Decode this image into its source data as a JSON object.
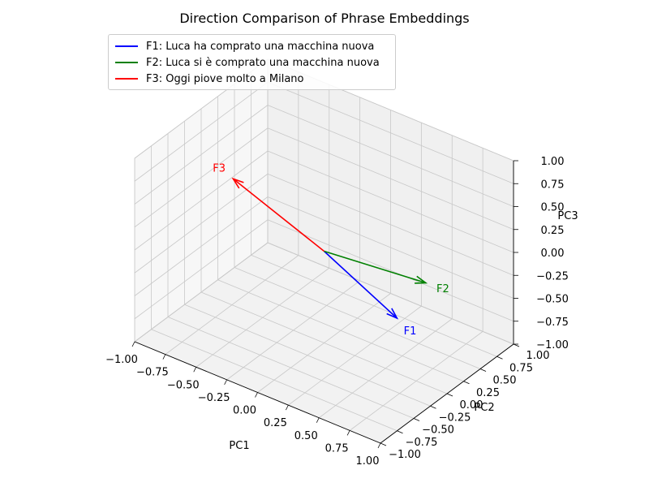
{
  "chart_data": {
    "type": "3d-quiver",
    "title": "Direction Comparison of Phrase Embeddings",
    "xlabel": "PC1",
    "ylabel": "PC2",
    "zlabel": "PC3",
    "xlim": [
      -1,
      1
    ],
    "ylim": [
      -1,
      1
    ],
    "zlim": [
      -1,
      1
    ],
    "x_ticks": [
      "−1.00",
      "−0.75",
      "−0.50",
      "−0.25",
      "0.00",
      "0.25",
      "0.50",
      "0.75",
      "1.00"
    ],
    "y_ticks": [
      "−1.00",
      "−0.75",
      "−0.50",
      "−0.25",
      "0.00",
      "0.25",
      "0.50",
      "0.75",
      "1.00"
    ],
    "z_ticks": [
      "−1.00",
      "−0.75",
      "−0.50",
      "−0.25",
      "0.00",
      "0.25",
      "0.50",
      "0.75",
      "1.00"
    ],
    "grid": true,
    "legend_position": "upper-left",
    "origin": [
      0,
      0,
      0
    ],
    "series": [
      {
        "name": "F1: Luca ha comprato una macchina nuova",
        "label": "F1",
        "color": "#0000ff",
        "vector": [
          0.62,
          -0.05,
          -0.36
        ]
      },
      {
        "name": "F2: Luca si è comprato una macchina nuova",
        "label": "F2",
        "color": "#008000",
        "vector": [
          0.6,
          0.42,
          -0.24
        ]
      },
      {
        "name": "F3: Oggi piove molto a Milano",
        "label": "F3",
        "color": "#ff0000",
        "vector": [
          -0.74,
          0.0,
          0.38
        ]
      }
    ]
  }
}
